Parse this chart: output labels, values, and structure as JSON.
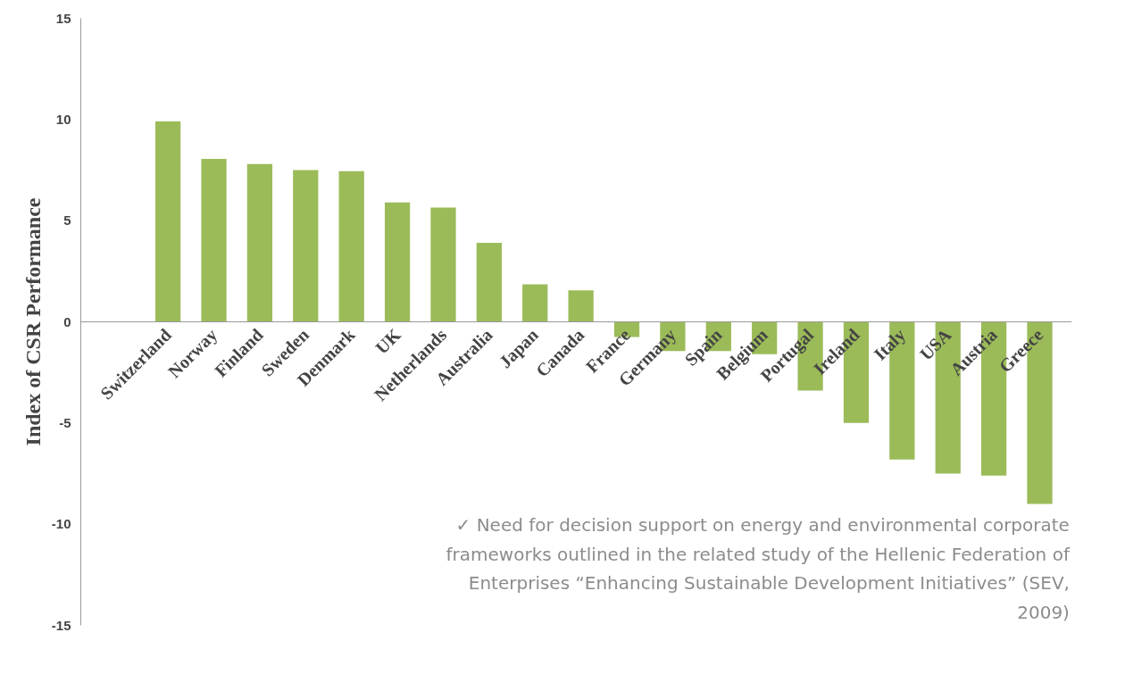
{
  "chart_data": {
    "type": "bar",
    "ylabel": "Index of CSR Performance",
    "categories": [
      "Switzerland",
      "Norway",
      "Finland",
      "Sweden",
      "Denmark",
      "UK",
      "Netherlands",
      "Australia",
      "Japan",
      "Canada",
      "France",
      "Germany",
      "Spain",
      "Belgium",
      "Portugal",
      "Ireland",
      "Italy",
      "USA",
      "Austria",
      "Greece"
    ],
    "values": [
      9.9,
      8.05,
      7.8,
      7.5,
      7.45,
      5.9,
      5.65,
      3.9,
      1.85,
      1.55,
      -0.75,
      -1.45,
      -1.45,
      -1.6,
      -3.4,
      -5.0,
      -6.8,
      -7.5,
      -7.6,
      -9.0
    ],
    "color": "#9bbb59",
    "ylim": [
      -15,
      15
    ],
    "yticks": [
      -15,
      -10,
      -5,
      0,
      5,
      10,
      15
    ],
    "grid": false,
    "annotations": [
      "✓ Need for decision support on energy and environmental corporate frameworks outlined in the related study of the Hellenic Federation of Enterprises “Enhancing Sustainable Development Initiatives” (SEV, 2009)"
    ]
  }
}
